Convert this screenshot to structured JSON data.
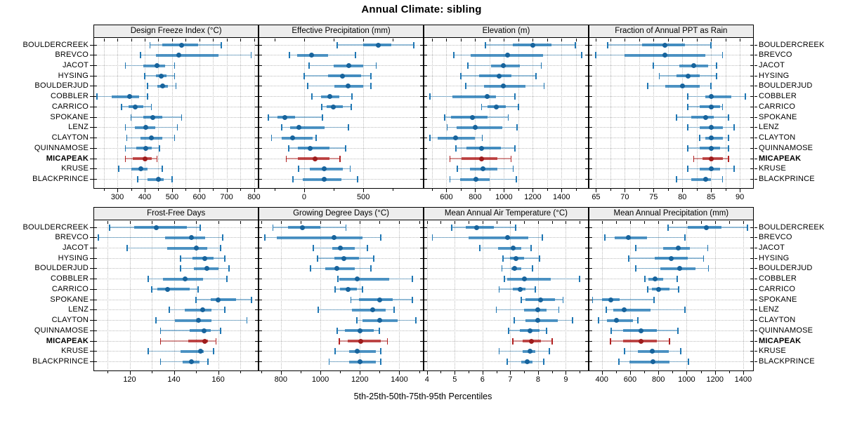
{
  "title": "Annual Climate: sibling",
  "footer": "5th-25th-50th-75th-95th Percentiles",
  "sites": [
    "BOULDERCREEK",
    "BREVCO",
    "JACOT",
    "HYSING",
    "BOULDERJUD",
    "COBBLER",
    "CARRICO",
    "SPOKANE",
    "LENZ",
    "CLAYTON",
    "QUINNAMOSE",
    "MICAPEAK",
    "KRUSE",
    "BLACKPRINCE"
  ],
  "highlight_site": "MICAPEAK",
  "colors": {
    "series": "#1f77b4",
    "series_dot": "#17639c",
    "highlight": "#b22222",
    "highlight_dot": "#9e1c1c",
    "strip_bg": "#ededed",
    "grid": "#bcbcbc",
    "border": "#000000",
    "text": "#000000"
  },
  "chart_data": {
    "type": "dotplot-percentiles",
    "percentiles": [
      5,
      25,
      50,
      75,
      95
    ],
    "legend_note": "values per site are [5th, 25th, 50th, 75th, 95th] percentiles",
    "panels": [
      {
        "title": "Design Freeze Index (°C)",
        "row": 0,
        "col": 0,
        "xlim": [
          215,
          815
        ],
        "ticks": [
          300,
          400,
          500,
          600,
          700,
          800
        ],
        "minor_step": 50,
        "grid_step": 50,
        "values": [
          [
            420,
            465,
            535,
            595,
            680
          ],
          [
            385,
            440,
            525,
            670,
            790
          ],
          [
            330,
            395,
            445,
            475,
            510
          ],
          [
            400,
            440,
            460,
            480,
            510
          ],
          [
            410,
            445,
            465,
            485,
            515
          ],
          [
            225,
            280,
            345,
            380,
            410
          ],
          [
            315,
            340,
            365,
            395,
            425
          ],
          [
            350,
            395,
            430,
            465,
            535
          ],
          [
            330,
            365,
            405,
            440,
            520
          ],
          [
            335,
            385,
            425,
            465,
            510
          ],
          [
            330,
            370,
            405,
            425,
            455
          ],
          [
            330,
            355,
            400,
            425,
            445
          ],
          [
            305,
            350,
            385,
            410,
            465
          ],
          [
            375,
            410,
            450,
            470,
            500
          ]
        ]
      },
      {
        "title": "Effective Precipitation (mm)",
        "row": 0,
        "col": 1,
        "xlim": [
          -380,
          1005
        ],
        "ticks": [
          0,
          500
        ],
        "minor_step": 250,
        "grid_step": 500,
        "values": [
          [
            280,
            500,
            625,
            735,
            925
          ],
          [
            -125,
            -60,
            65,
            200,
            435
          ],
          [
            45,
            250,
            375,
            500,
            610
          ],
          [
            0,
            200,
            325,
            480,
            565
          ],
          [
            30,
            255,
            370,
            500,
            565
          ],
          [
            65,
            145,
            215,
            295,
            405
          ],
          [
            150,
            190,
            245,
            330,
            400
          ],
          [
            -300,
            -225,
            -160,
            -75,
            155
          ],
          [
            -190,
            -120,
            -45,
            175,
            375
          ],
          [
            -275,
            -190,
            -100,
            70,
            100
          ],
          [
            -130,
            -50,
            50,
            215,
            350
          ],
          [
            -150,
            -50,
            90,
            215,
            305
          ],
          [
            -45,
            50,
            170,
            325,
            390
          ],
          [
            -95,
            -10,
            170,
            315,
            450
          ]
        ]
      },
      {
        "title": "Elevation (m)",
        "row": 0,
        "col": 2,
        "xlim": [
          445,
          1585
        ],
        "ticks": [
          600,
          800,
          1000,
          1200,
          1400
        ],
        "minor_step": 100,
        "grid_step": 100,
        "values": [
          [
            870,
            1060,
            1200,
            1330,
            1495
          ],
          [
            650,
            770,
            1025,
            1270,
            1540
          ],
          [
            750,
            910,
            995,
            1110,
            1260
          ],
          [
            700,
            825,
            965,
            1050,
            1225
          ],
          [
            735,
            860,
            995,
            1150,
            1280
          ],
          [
            485,
            640,
            885,
            945,
            1075
          ],
          [
            845,
            885,
            945,
            1015,
            1100
          ],
          [
            590,
            630,
            780,
            885,
            1030
          ],
          [
            605,
            670,
            800,
            990,
            1090
          ],
          [
            485,
            540,
            665,
            800,
            850
          ],
          [
            665,
            740,
            845,
            980,
            1075
          ],
          [
            625,
            705,
            845,
            955,
            1050
          ],
          [
            675,
            765,
            855,
            955,
            1065
          ],
          [
            625,
            695,
            805,
            900,
            1085
          ]
        ]
      },
      {
        "title": "Fraction of Annual PPT as Rain",
        "row": 0,
        "col": 3,
        "xlim": [
          63.8,
          92.3
        ],
        "ticks": [
          65,
          70,
          75,
          80,
          85,
          90
        ],
        "minor_step": 2.5,
        "grid_step": 2.5,
        "values": [
          [
            67,
            73,
            77,
            80.5,
            85
          ],
          [
            65,
            70,
            77,
            84,
            87
          ],
          [
            75,
            79.5,
            82,
            84.5,
            86
          ],
          [
            76,
            79,
            81,
            83,
            86
          ],
          [
            74,
            77,
            80,
            83,
            85
          ],
          [
            81,
            84,
            85,
            88.5,
            91
          ],
          [
            81,
            83,
            85,
            86.5,
            87
          ],
          [
            79,
            81.5,
            84,
            85.5,
            88
          ],
          [
            81,
            83,
            85,
            87,
            89
          ],
          [
            83,
            84,
            85,
            87,
            88
          ],
          [
            81,
            83,
            85,
            86.5,
            88
          ],
          [
            82,
            83.5,
            85,
            87,
            88
          ],
          [
            81,
            83,
            85,
            86.5,
            89
          ],
          [
            79,
            81.5,
            84,
            85,
            87
          ]
        ]
      },
      {
        "title": "Frost-Free Days",
        "row": 1,
        "col": 0,
        "xlim": [
          104,
          178
        ],
        "ticks": [
          120,
          140,
          160
        ],
        "minor_step": 10,
        "grid_step": 10,
        "values": [
          [
            111,
            122,
            132,
            146,
            152
          ],
          [
            106,
            136,
            148,
            154,
            162
          ],
          [
            119,
            137,
            150,
            155,
            161
          ],
          [
            143,
            148.5,
            154,
            158,
            163
          ],
          [
            143,
            149,
            155,
            160,
            165
          ],
          [
            128.5,
            135,
            145,
            153,
            164
          ],
          [
            130,
            132.5,
            137,
            147,
            151
          ],
          [
            150,
            156.5,
            160,
            168,
            175
          ],
          [
            138,
            145,
            153,
            157,
            163
          ],
          [
            132,
            140.5,
            151,
            157,
            173
          ],
          [
            134,
            147,
            153.5,
            156.5,
            161
          ],
          [
            134,
            146.5,
            154,
            155.5,
            159
          ],
          [
            128.5,
            143,
            152,
            153.5,
            158
          ],
          [
            134,
            144,
            148,
            151.5,
            155.5
          ]
        ]
      },
      {
        "title": "Growing Degree Days (°C)",
        "row": 1,
        "col": 1,
        "xlim": [
          690,
          1520
        ],
        "ticks": [
          800,
          1000,
          1200,
          1400
        ],
        "minor_step": 100,
        "grid_step": 200,
        "values": [
          [
            760,
            835,
            910,
            1000,
            1130
          ],
          [
            720,
            780,
            1070,
            1215,
            1305
          ],
          [
            965,
            1060,
            1100,
            1175,
            1240
          ],
          [
            985,
            1070,
            1120,
            1195,
            1270
          ],
          [
            950,
            1025,
            1085,
            1175,
            1255
          ],
          [
            1090,
            1095,
            1185,
            1350,
            1465
          ],
          [
            1075,
            1100,
            1140,
            1185,
            1215
          ],
          [
            1155,
            1195,
            1300,
            1365,
            1465
          ],
          [
            990,
            1160,
            1265,
            1330,
            1375
          ],
          [
            1185,
            1215,
            1300,
            1390,
            1485
          ],
          [
            1085,
            1125,
            1200,
            1270,
            1300
          ],
          [
            1095,
            1140,
            1205,
            1305,
            1340
          ],
          [
            1075,
            1145,
            1185,
            1280,
            1305
          ],
          [
            1045,
            1145,
            1200,
            1280,
            1305
          ]
        ]
      },
      {
        "title": "Mean Annual Air Temperature (°C)",
        "row": 1,
        "col": 2,
        "xlim": [
          3.9,
          9.8
        ],
        "ticks": [
          4,
          5,
          6,
          7,
          8,
          9
        ],
        "minor_step": 0.5,
        "grid_step": 1,
        "values": [
          [
            4.9,
            5.4,
            5.8,
            6.4,
            7.2
          ],
          [
            4.2,
            5.5,
            6.9,
            7.65,
            8.15
          ],
          [
            5.9,
            6.55,
            7.1,
            7.4,
            7.75
          ],
          [
            6.75,
            7,
            7.2,
            7.5,
            8.05
          ],
          [
            6.7,
            7.05,
            7.15,
            7.4,
            7.8
          ],
          [
            6.8,
            6.9,
            7.5,
            8.45,
            9.5
          ],
          [
            6.6,
            7.1,
            7.35,
            7.55,
            7.9
          ],
          [
            7.4,
            7.55,
            8.1,
            8.6,
            8.9
          ],
          [
            6.5,
            7.5,
            8,
            8.3,
            8.75
          ],
          [
            7.15,
            7.55,
            8,
            8.7,
            9.25
          ],
          [
            6.95,
            7.35,
            7.7,
            8.05,
            8.3
          ],
          [
            7.1,
            7.45,
            7.75,
            8.1,
            8.5
          ],
          [
            6.6,
            7.45,
            7.7,
            7.9,
            8.4
          ],
          [
            6.9,
            7.4,
            7.6,
            7.8,
            8.2
          ]
        ]
      },
      {
        "title": "Mean Annual Precipitation (mm)",
        "row": 1,
        "col": 3,
        "xlim": [
          310,
          1470
        ],
        "ticks": [
          400,
          600,
          800,
          1000,
          1200,
          1400
        ],
        "minor_step": 100,
        "grid_step": 200,
        "values": [
          [
            870,
            1010,
            1140,
            1245,
            1430
          ],
          [
            420,
            490,
            590,
            720,
            990
          ],
          [
            640,
            835,
            940,
            1025,
            1150
          ],
          [
            590,
            775,
            890,
            1005,
            1120
          ],
          [
            640,
            815,
            950,
            1060,
            1155
          ],
          [
            705,
            730,
            775,
            835,
            935
          ],
          [
            725,
            755,
            800,
            880,
            945
          ],
          [
            335,
            400,
            465,
            525,
            770
          ],
          [
            430,
            480,
            560,
            745,
            990
          ],
          [
            375,
            435,
            505,
            620,
            655
          ],
          [
            465,
            548,
            675,
            790,
            940
          ],
          [
            460,
            550,
            675,
            790,
            880
          ],
          [
            560,
            655,
            755,
            875,
            960
          ],
          [
            520,
            595,
            760,
            880,
            1015
          ]
        ]
      }
    ]
  }
}
